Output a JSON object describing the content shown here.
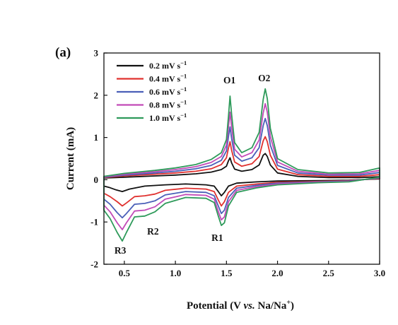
{
  "chart_data": {
    "type": "line",
    "panel_label": "(a)",
    "xlabel_parts": [
      "Potential (V ",
      "vs.",
      " Na/Na",
      "+",
      ")"
    ],
    "ylabel": "Current (mA)",
    "xlim": [
      0.3,
      3.0
    ],
    "ylim": [
      -2,
      3
    ],
    "x_ticks": [
      0.5,
      1.0,
      1.5,
      2.0,
      2.5,
      3.0
    ],
    "x_tick_labels": [
      "0.5",
      "1.0",
      "1.5",
      "2.0",
      "2.5",
      "3.0"
    ],
    "y_ticks": [
      -2,
      -1,
      0,
      1,
      2,
      3
    ],
    "y_tick_labels": [
      "-2",
      "-1",
      "0",
      "1",
      "2",
      "3"
    ],
    "grid": false,
    "legend_position": "top-left",
    "annotations": [
      {
        "text": "O1",
        "x": 1.53,
        "y": 2.28
      },
      {
        "text": "O2",
        "x": 1.87,
        "y": 2.33
      },
      {
        "text": "R1",
        "x": 1.41,
        "y": -1.45
      },
      {
        "text": "R2",
        "x": 0.78,
        "y": -1.3
      },
      {
        "text": "R3",
        "x": 0.46,
        "y": -1.75
      }
    ],
    "series": [
      {
        "name": "0.2 mV s",
        "name_sup": "−1",
        "color": "#111111",
        "anodic": [
          [
            0.3,
            0.04
          ],
          [
            0.5,
            0.06
          ],
          [
            0.8,
            0.09
          ],
          [
            1.0,
            0.11
          ],
          [
            1.2,
            0.14
          ],
          [
            1.35,
            0.18
          ],
          [
            1.45,
            0.24
          ],
          [
            1.5,
            0.32
          ],
          [
            1.52,
            0.45
          ],
          [
            1.535,
            0.52
          ],
          [
            1.55,
            0.4
          ],
          [
            1.58,
            0.25
          ],
          [
            1.65,
            0.2
          ],
          [
            1.75,
            0.24
          ],
          [
            1.82,
            0.35
          ],
          [
            1.86,
            0.58
          ],
          [
            1.88,
            0.62
          ],
          [
            1.9,
            0.55
          ],
          [
            1.93,
            0.35
          ],
          [
            2.0,
            0.16
          ],
          [
            2.2,
            0.08
          ],
          [
            2.5,
            0.05
          ],
          [
            2.8,
            0.05
          ],
          [
            3.0,
            0.07
          ]
        ],
        "cathodic": [
          [
            3.0,
            0.02
          ],
          [
            2.7,
            -0.01
          ],
          [
            2.4,
            -0.02
          ],
          [
            2.0,
            -0.03
          ],
          [
            1.8,
            -0.05
          ],
          [
            1.6,
            -0.08
          ],
          [
            1.52,
            -0.15
          ],
          [
            1.48,
            -0.3
          ],
          [
            1.45,
            -0.38
          ],
          [
            1.42,
            -0.28
          ],
          [
            1.38,
            -0.15
          ],
          [
            1.3,
            -0.12
          ],
          [
            1.1,
            -0.1
          ],
          [
            0.9,
            -0.12
          ],
          [
            0.7,
            -0.15
          ],
          [
            0.55,
            -0.22
          ],
          [
            0.48,
            -0.28
          ],
          [
            0.42,
            -0.24
          ],
          [
            0.35,
            -0.18
          ],
          [
            0.3,
            -0.15
          ]
        ]
      },
      {
        "name": "0.4 mV s",
        "name_sup": "−1",
        "color": "#e0312f",
        "anodic": [
          [
            0.3,
            0.05
          ],
          [
            0.5,
            0.09
          ],
          [
            0.8,
            0.13
          ],
          [
            1.0,
            0.16
          ],
          [
            1.2,
            0.2
          ],
          [
            1.35,
            0.26
          ],
          [
            1.45,
            0.36
          ],
          [
            1.5,
            0.52
          ],
          [
            1.52,
            0.75
          ],
          [
            1.535,
            0.9
          ],
          [
            1.55,
            0.7
          ],
          [
            1.58,
            0.42
          ],
          [
            1.65,
            0.32
          ],
          [
            1.75,
            0.38
          ],
          [
            1.82,
            0.55
          ],
          [
            1.86,
            0.92
          ],
          [
            1.88,
            1.02
          ],
          [
            1.9,
            0.9
          ],
          [
            1.93,
            0.58
          ],
          [
            2.0,
            0.25
          ],
          [
            2.2,
            0.12
          ],
          [
            2.5,
            0.08
          ],
          [
            2.8,
            0.08
          ],
          [
            3.0,
            0.12
          ]
        ],
        "cathodic": [
          [
            3.0,
            0.03
          ],
          [
            2.7,
            -0.02
          ],
          [
            2.4,
            -0.04
          ],
          [
            2.0,
            -0.06
          ],
          [
            1.8,
            -0.1
          ],
          [
            1.6,
            -0.15
          ],
          [
            1.52,
            -0.3
          ],
          [
            1.48,
            -0.52
          ],
          [
            1.45,
            -0.62
          ],
          [
            1.42,
            -0.48
          ],
          [
            1.38,
            -0.28
          ],
          [
            1.3,
            -0.22
          ],
          [
            1.1,
            -0.2
          ],
          [
            0.9,
            -0.25
          ],
          [
            0.8,
            -0.34
          ],
          [
            0.7,
            -0.38
          ],
          [
            0.6,
            -0.4
          ],
          [
            0.52,
            -0.55
          ],
          [
            0.48,
            -0.62
          ],
          [
            0.43,
            -0.52
          ],
          [
            0.36,
            -0.4
          ],
          [
            0.3,
            -0.32
          ]
        ]
      },
      {
        "name": "0.6 mV s",
        "name_sup": "−1",
        "color": "#4a5fb8",
        "anodic": [
          [
            0.3,
            0.06
          ],
          [
            0.5,
            0.11
          ],
          [
            0.8,
            0.16
          ],
          [
            1.0,
            0.2
          ],
          [
            1.2,
            0.26
          ],
          [
            1.35,
            0.34
          ],
          [
            1.45,
            0.46
          ],
          [
            1.5,
            0.68
          ],
          [
            1.52,
            1.02
          ],
          [
            1.535,
            1.25
          ],
          [
            1.55,
            0.98
          ],
          [
            1.58,
            0.58
          ],
          [
            1.65,
            0.44
          ],
          [
            1.75,
            0.52
          ],
          [
            1.82,
            0.76
          ],
          [
            1.86,
            1.28
          ],
          [
            1.88,
            1.45
          ],
          [
            1.9,
            1.28
          ],
          [
            1.93,
            0.82
          ],
          [
            2.0,
            0.34
          ],
          [
            2.2,
            0.16
          ],
          [
            2.5,
            0.11
          ],
          [
            2.8,
            0.11
          ],
          [
            3.0,
            0.17
          ]
        ],
        "cathodic": [
          [
            3.0,
            0.04
          ],
          [
            2.7,
            -0.03
          ],
          [
            2.4,
            -0.05
          ],
          [
            2.0,
            -0.08
          ],
          [
            1.8,
            -0.13
          ],
          [
            1.6,
            -0.2
          ],
          [
            1.52,
            -0.42
          ],
          [
            1.48,
            -0.72
          ],
          [
            1.45,
            -0.8
          ],
          [
            1.42,
            -0.62
          ],
          [
            1.38,
            -0.38
          ],
          [
            1.3,
            -0.3
          ],
          [
            1.1,
            -0.28
          ],
          [
            0.9,
            -0.36
          ],
          [
            0.8,
            -0.5
          ],
          [
            0.7,
            -0.56
          ],
          [
            0.6,
            -0.58
          ],
          [
            0.52,
            -0.8
          ],
          [
            0.48,
            -0.9
          ],
          [
            0.43,
            -0.78
          ],
          [
            0.36,
            -0.58
          ],
          [
            0.3,
            -0.46
          ]
        ]
      },
      {
        "name": "0.8 mV s",
        "name_sup": "−1",
        "color": "#c24ab8",
        "anodic": [
          [
            0.3,
            0.07
          ],
          [
            0.5,
            0.13
          ],
          [
            0.8,
            0.19
          ],
          [
            1.0,
            0.24
          ],
          [
            1.2,
            0.31
          ],
          [
            1.35,
            0.41
          ],
          [
            1.45,
            0.55
          ],
          [
            1.5,
            0.82
          ],
          [
            1.52,
            1.25
          ],
          [
            1.535,
            1.6
          ],
          [
            1.55,
            1.25
          ],
          [
            1.58,
            0.72
          ],
          [
            1.65,
            0.54
          ],
          [
            1.75,
            0.64
          ],
          [
            1.82,
            0.94
          ],
          [
            1.86,
            1.58
          ],
          [
            1.88,
            1.8
          ],
          [
            1.9,
            1.6
          ],
          [
            1.93,
            1.02
          ],
          [
            2.0,
            0.42
          ],
          [
            2.2,
            0.2
          ],
          [
            2.5,
            0.13
          ],
          [
            2.8,
            0.14
          ],
          [
            3.0,
            0.22
          ]
        ],
        "cathodic": [
          [
            3.0,
            0.05
          ],
          [
            2.7,
            -0.04
          ],
          [
            2.4,
            -0.06
          ],
          [
            2.0,
            -0.1
          ],
          [
            1.8,
            -0.16
          ],
          [
            1.6,
            -0.25
          ],
          [
            1.52,
            -0.52
          ],
          [
            1.48,
            -0.88
          ],
          [
            1.45,
            -0.95
          ],
          [
            1.42,
            -0.75
          ],
          [
            1.38,
            -0.46
          ],
          [
            1.3,
            -0.37
          ],
          [
            1.1,
            -0.35
          ],
          [
            0.9,
            -0.46
          ],
          [
            0.8,
            -0.64
          ],
          [
            0.7,
            -0.72
          ],
          [
            0.6,
            -0.74
          ],
          [
            0.52,
            -1.02
          ],
          [
            0.48,
            -1.18
          ],
          [
            0.43,
            -1.02
          ],
          [
            0.36,
            -0.76
          ],
          [
            0.3,
            -0.6
          ]
        ]
      },
      {
        "name": "1.0 mV s",
        "name_sup": "−1",
        "color": "#2e9a5a",
        "anodic": [
          [
            0.3,
            0.08
          ],
          [
            0.5,
            0.15
          ],
          [
            0.8,
            0.22
          ],
          [
            1.0,
            0.28
          ],
          [
            1.2,
            0.36
          ],
          [
            1.35,
            0.48
          ],
          [
            1.45,
            0.64
          ],
          [
            1.5,
            0.95
          ],
          [
            1.52,
            1.5
          ],
          [
            1.535,
            1.98
          ],
          [
            1.55,
            1.55
          ],
          [
            1.58,
            0.88
          ],
          [
            1.65,
            0.64
          ],
          [
            1.75,
            0.76
          ],
          [
            1.82,
            1.12
          ],
          [
            1.86,
            1.9
          ],
          [
            1.88,
            2.15
          ],
          [
            1.9,
            1.92
          ],
          [
            1.93,
            1.22
          ],
          [
            2.0,
            0.5
          ],
          [
            2.2,
            0.24
          ],
          [
            2.5,
            0.16
          ],
          [
            2.8,
            0.17
          ],
          [
            3.0,
            0.28
          ]
        ],
        "cathodic": [
          [
            3.0,
            0.06
          ],
          [
            2.7,
            -0.05
          ],
          [
            2.4,
            -0.07
          ],
          [
            2.0,
            -0.12
          ],
          [
            1.8,
            -0.19
          ],
          [
            1.6,
            -0.3
          ],
          [
            1.52,
            -0.62
          ],
          [
            1.48,
            -1.02
          ],
          [
            1.45,
            -1.08
          ],
          [
            1.42,
            -0.86
          ],
          [
            1.38,
            -0.54
          ],
          [
            1.3,
            -0.44
          ],
          [
            1.1,
            -0.42
          ],
          [
            0.9,
            -0.56
          ],
          [
            0.8,
            -0.76
          ],
          [
            0.7,
            -0.86
          ],
          [
            0.6,
            -0.88
          ],
          [
            0.52,
            -1.25
          ],
          [
            0.48,
            -1.45
          ],
          [
            0.43,
            -1.25
          ],
          [
            0.36,
            -0.92
          ],
          [
            0.3,
            -0.72
          ]
        ]
      }
    ]
  }
}
